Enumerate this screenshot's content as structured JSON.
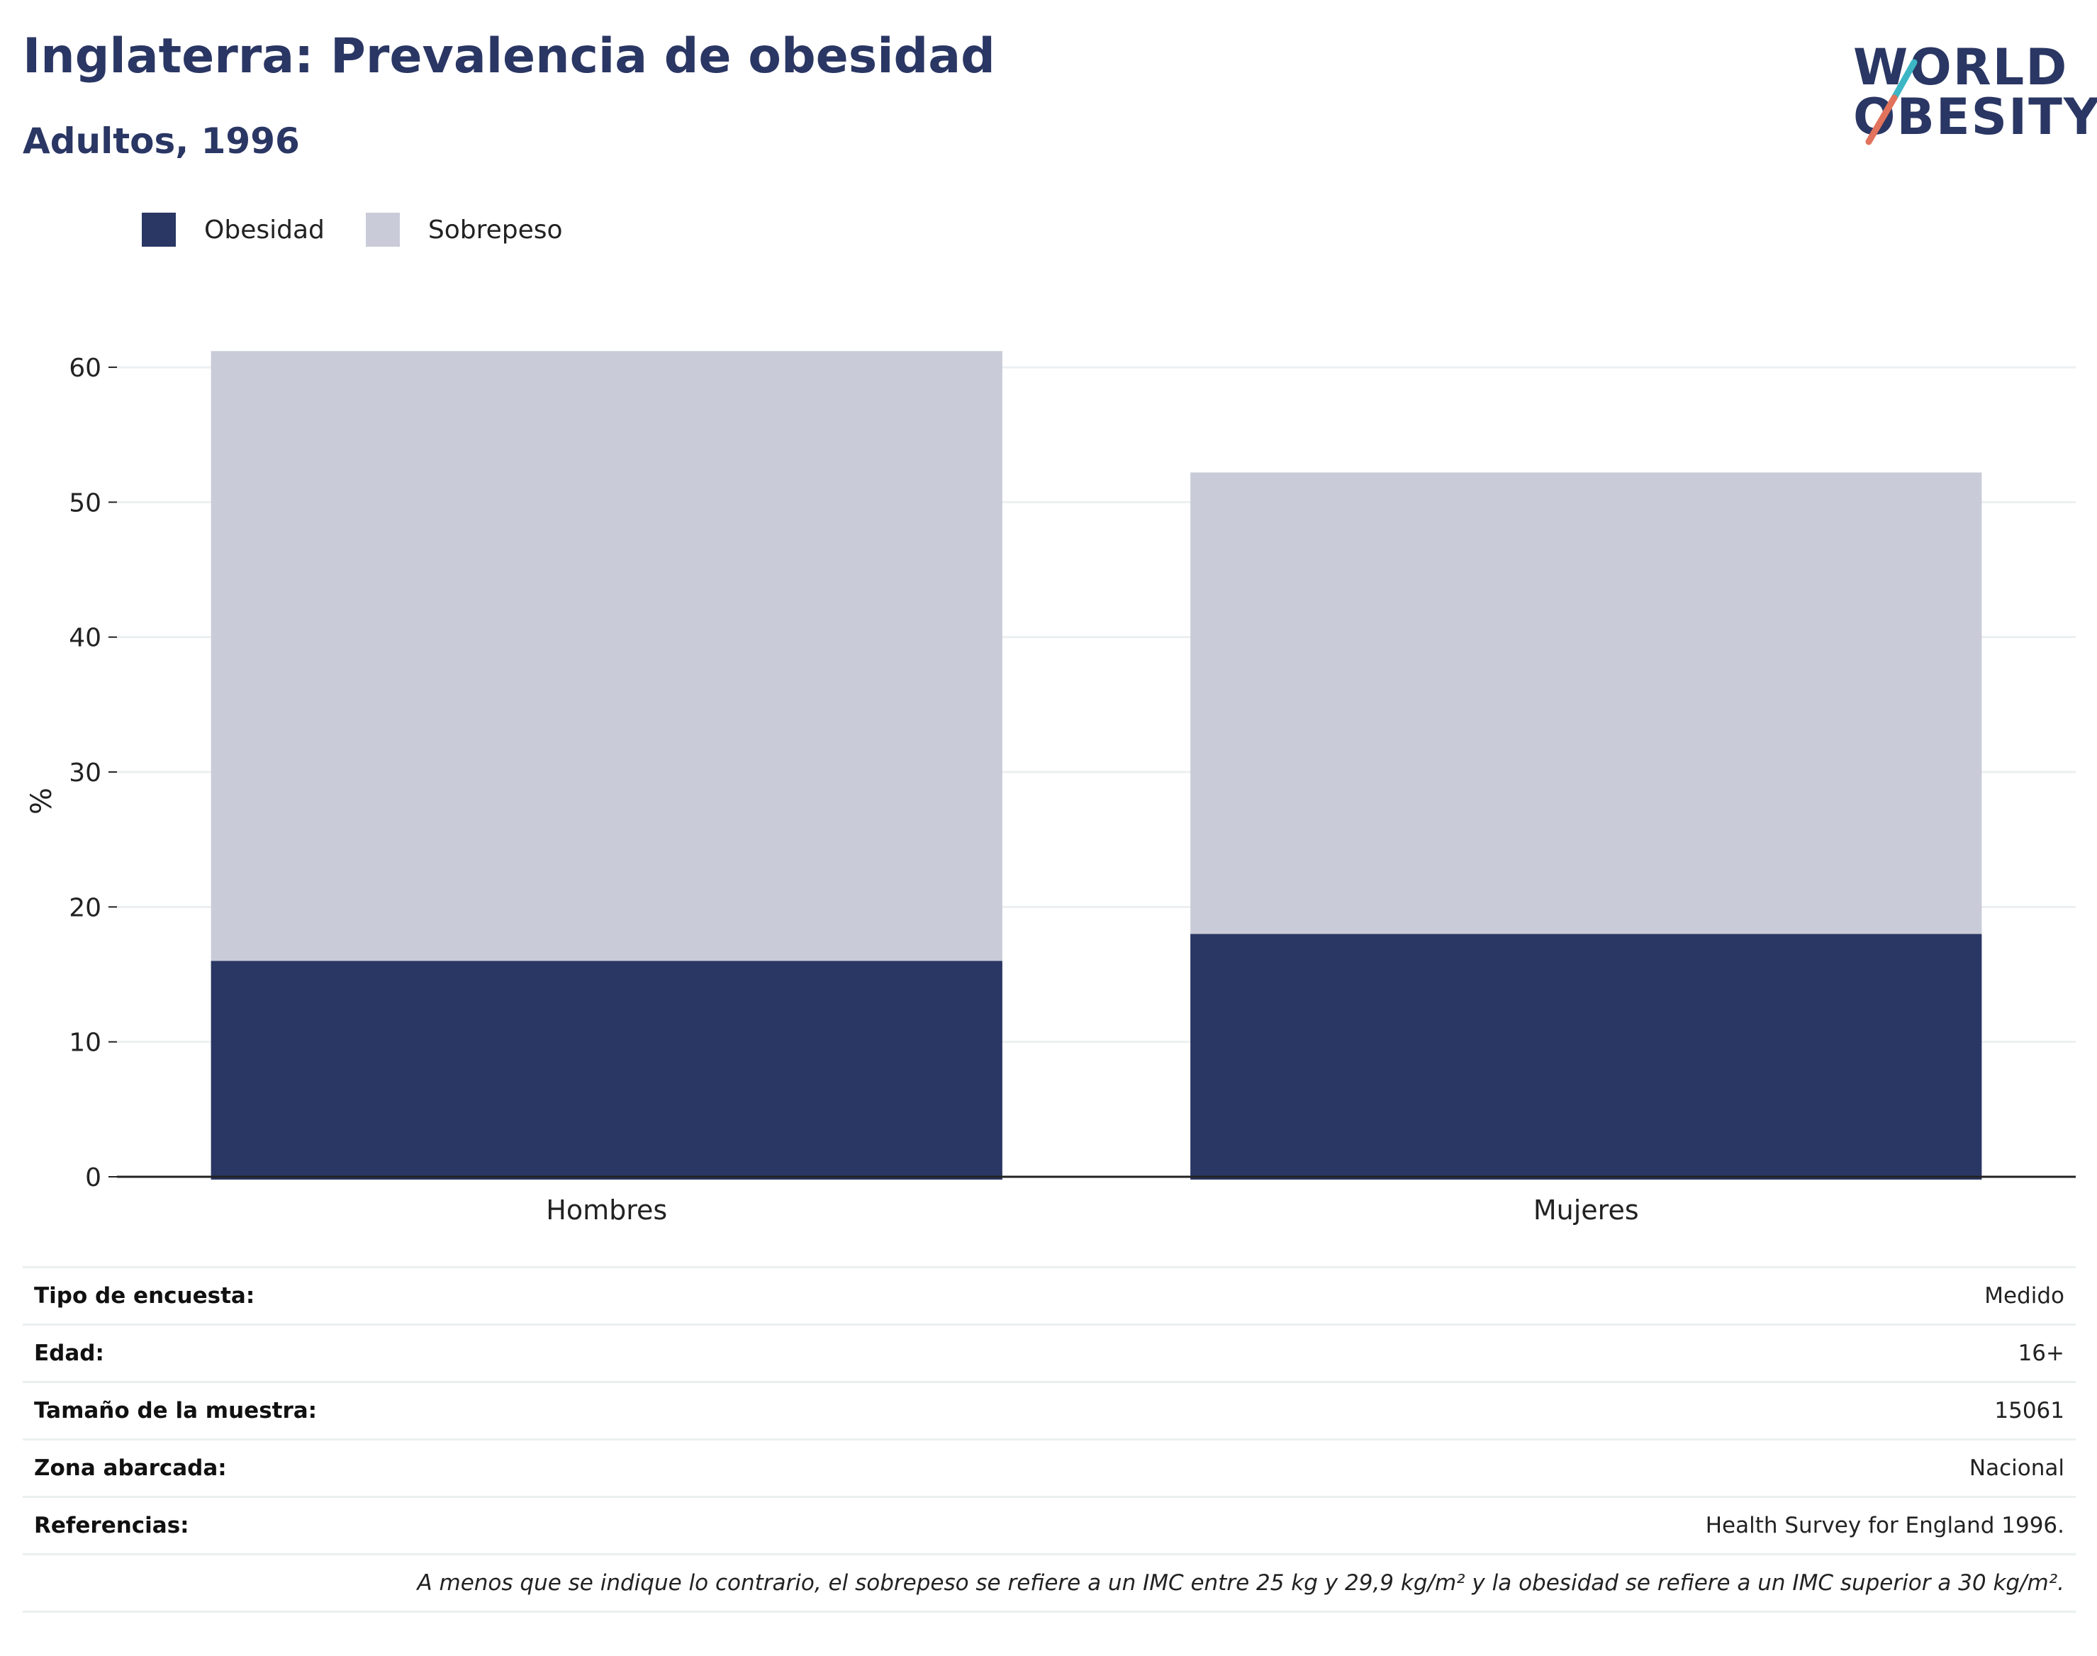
{
  "header": {
    "title": "Inglaterra: Prevalencia de obesidad",
    "subtitle": "Adultos, 1996"
  },
  "logo": {
    "line1": "WORLD",
    "line2": "OBESITY",
    "colors": {
      "text": "#2a3663",
      "slash_top": "#3cb6c4",
      "slash_bottom": "#e2725b"
    }
  },
  "legend": [
    {
      "label": "Obesidad",
      "color": "#2a3663"
    },
    {
      "label": "Sobrepeso",
      "color": "#c9ccd8"
    }
  ],
  "chart_data": {
    "type": "bar",
    "stacked": true,
    "categories": [
      "Hombres",
      "Mujeres"
    ],
    "series": [
      {
        "name": "Obesidad",
        "values": [
          16,
          18
        ],
        "color": "#2a3663"
      },
      {
        "name": "Sobrepeso",
        "values": [
          45.2,
          34.2
        ],
        "color": "#c9ccd8"
      }
    ],
    "ylabel": "%",
    "ylim": [
      0,
      62
    ],
    "yticks": [
      0,
      10,
      20,
      30,
      40,
      50,
      60
    ],
    "grid": true,
    "legend_position": "top-left"
  },
  "details": [
    {
      "key": "Tipo de encuesta:",
      "value": "Medido"
    },
    {
      "key": "Edad:",
      "value": "16+"
    },
    {
      "key": "Tamaño de la muestra:",
      "value": "15061"
    },
    {
      "key": "Zona abarcada:",
      "value": "Nacional"
    },
    {
      "key": "Referencias:",
      "value": "Health Survey for England 1996."
    }
  ],
  "note": "A menos que se indique lo contrario, el sobrepeso se refiere a un IMC entre 25 kg y 29,9 kg/m² y la obesidad se refiere a un IMC superior a 30 kg/m²."
}
